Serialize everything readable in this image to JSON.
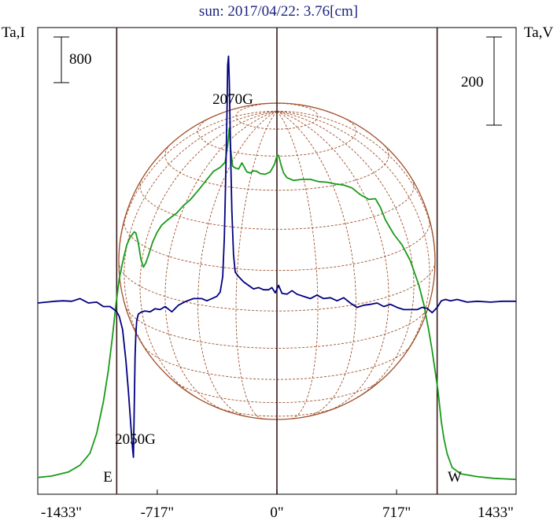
{
  "chart_data": {
    "type": "line",
    "title": "sun: 2017/04/22: 3.76[cm]",
    "ylabel_left": "Ta,I",
    "ylabel_right": "Ta,V",
    "scale_left_label": "800",
    "scale_right_label": "200",
    "x_unit": "arcsec",
    "xlim": [
      -1433,
      1433
    ],
    "x_ticks": [
      {
        "value": -1433,
        "label": "-1433\""
      },
      {
        "value": -717,
        "label": "-717\""
      },
      {
        "value": 0,
        "label": "0\""
      },
      {
        "value": 717,
        "label": "717\""
      },
      {
        "value": 1433,
        "label": "1433\""
      }
    ],
    "vertical_lines": [
      -960,
      0,
      960
    ],
    "limb_labels": [
      {
        "text": "E",
        "x": -1025
      },
      {
        "text": "W",
        "x": 1050
      }
    ],
    "annotations": [
      {
        "text": "2070G",
        "x": -287
      },
      {
        "text": "2050G",
        "x": -855
      }
    ],
    "grid": false,
    "colors": {
      "I": "#1a9a1a",
      "V": "#000080",
      "sun": "#a0522d",
      "title": "#1a237e",
      "guides": "#3b1a1a"
    },
    "series": [
      {
        "name": "I",
        "color": "#1a9a1a",
        "points": [
          [
            -1433,
            -175
          ],
          [
            -1350,
            -150
          ],
          [
            -1250,
            -80
          ],
          [
            -1180,
            40
          ],
          [
            -1120,
            250
          ],
          [
            -1080,
            600
          ],
          [
            -1040,
            1150
          ],
          [
            -1010,
            1700
          ],
          [
            -985,
            2300
          ],
          [
            -965,
            2850
          ],
          [
            -945,
            3300
          ],
          [
            -930,
            3520
          ],
          [
            -915,
            3720
          ],
          [
            -900,
            3900
          ],
          [
            -880,
            4030
          ],
          [
            -855,
            4130
          ],
          [
            -845,
            4110
          ],
          [
            -830,
            3930
          ],
          [
            -815,
            3650
          ],
          [
            -800,
            3510
          ],
          [
            -785,
            3590
          ],
          [
            -765,
            3760
          ],
          [
            -745,
            3950
          ],
          [
            -720,
            4110
          ],
          [
            -690,
            4250
          ],
          [
            -650,
            4350
          ],
          [
            -600,
            4460
          ],
          [
            -560,
            4590
          ],
          [
            -520,
            4690
          ],
          [
            -470,
            4860
          ],
          [
            -430,
            5010
          ],
          [
            -380,
            5190
          ],
          [
            -340,
            5260
          ],
          [
            -310,
            5350
          ],
          [
            -295,
            5650
          ],
          [
            -285,
            5950
          ],
          [
            -278,
            5600
          ],
          [
            -265,
            5280
          ],
          [
            -250,
            5250
          ],
          [
            -230,
            5230
          ],
          [
            -210,
            5340
          ],
          [
            -195,
            5260
          ],
          [
            -180,
            5180
          ],
          [
            -160,
            5160
          ],
          [
            -140,
            5200
          ],
          [
            -120,
            5190
          ],
          [
            -100,
            5150
          ],
          [
            -70,
            5140
          ],
          [
            -40,
            5180
          ],
          [
            -15,
            5310
          ],
          [
            0,
            5460
          ],
          [
            10,
            5470
          ],
          [
            25,
            5300
          ],
          [
            40,
            5160
          ],
          [
            60,
            5080
          ],
          [
            100,
            5030
          ],
          [
            150,
            5050
          ],
          [
            200,
            5050
          ],
          [
            250,
            5010
          ],
          [
            300,
            5000
          ],
          [
            350,
            4970
          ],
          [
            400,
            4950
          ],
          [
            450,
            4900
          ],
          [
            500,
            4780
          ],
          [
            550,
            4700
          ],
          [
            590,
            4710
          ],
          [
            620,
            4560
          ],
          [
            650,
            4340
          ],
          [
            700,
            4090
          ],
          [
            750,
            3900
          ],
          [
            800,
            3620
          ],
          [
            850,
            3200
          ],
          [
            880,
            2860
          ],
          [
            910,
            2400
          ],
          [
            930,
            2050
          ],
          [
            950,
            1650
          ],
          [
            965,
            1350
          ],
          [
            985,
            800
          ],
          [
            1000,
            520
          ],
          [
            1020,
            240
          ],
          [
            1050,
            0
          ],
          [
            1100,
            -110
          ],
          [
            1200,
            -160
          ],
          [
            1300,
            -190
          ],
          [
            1433,
            -210
          ]
        ]
      },
      {
        "name": "V",
        "color": "#000080",
        "points": [
          [
            -1433,
            0
          ],
          [
            -1380,
            2
          ],
          [
            -1330,
            4
          ],
          [
            -1280,
            5
          ],
          [
            -1230,
            4
          ],
          [
            -1180,
            10
          ],
          [
            -1130,
            0
          ],
          [
            -1080,
            2
          ],
          [
            -1040,
            -8
          ],
          [
            -1000,
            -8
          ],
          [
            -975,
            -15
          ],
          [
            -960,
            -20
          ],
          [
            -945,
            -30
          ],
          [
            -925,
            -60
          ],
          [
            -905,
            -130
          ],
          [
            -890,
            -200
          ],
          [
            -875,
            -280
          ],
          [
            -865,
            -330
          ],
          [
            -860,
            -350
          ],
          [
            -855,
            -240
          ],
          [
            -850,
            -120
          ],
          [
            -845,
            -70
          ],
          [
            -840,
            -40
          ],
          [
            -830,
            -25
          ],
          [
            -810,
            -20
          ],
          [
            -790,
            -18
          ],
          [
            -760,
            -20
          ],
          [
            -730,
            -13
          ],
          [
            -700,
            -15
          ],
          [
            -670,
            -8
          ],
          [
            -630,
            -20
          ],
          [
            -590,
            -5
          ],
          [
            -550,
            3
          ],
          [
            -500,
            10
          ],
          [
            -450,
            10
          ],
          [
            -420,
            5
          ],
          [
            -390,
            10
          ],
          [
            -360,
            15
          ],
          [
            -340,
            25
          ],
          [
            -325,
            60
          ],
          [
            -315,
            150
          ],
          [
            -308,
            270
          ],
          [
            -300,
            420
          ],
          [
            -295,
            540
          ],
          [
            -290,
            560
          ],
          [
            -285,
            500
          ],
          [
            -278,
            350
          ],
          [
            -270,
            210
          ],
          [
            -260,
            110
          ],
          [
            -250,
            70
          ],
          [
            -230,
            60
          ],
          [
            -200,
            48
          ],
          [
            -170,
            40
          ],
          [
            -140,
            32
          ],
          [
            -110,
            35
          ],
          [
            -80,
            30
          ],
          [
            -50,
            30
          ],
          [
            -30,
            35
          ],
          [
            -10,
            23
          ],
          [
            10,
            40
          ],
          [
            30,
            22
          ],
          [
            60,
            20
          ],
          [
            90,
            28
          ],
          [
            120,
            20
          ],
          [
            160,
            15
          ],
          [
            200,
            10
          ],
          [
            240,
            18
          ],
          [
            280,
            10
          ],
          [
            320,
            12
          ],
          [
            360,
            5
          ],
          [
            400,
            12
          ],
          [
            440,
            0
          ],
          [
            480,
            -10
          ],
          [
            520,
            -5
          ],
          [
            560,
            -3
          ],
          [
            600,
            0
          ],
          [
            640,
            -8
          ],
          [
            680,
            -3
          ],
          [
            720,
            -10
          ],
          [
            760,
            -15
          ],
          [
            800,
            -15
          ],
          [
            840,
            -15
          ],
          [
            870,
            -10
          ],
          [
            900,
            -12
          ],
          [
            930,
            -22
          ],
          [
            960,
            -10
          ],
          [
            985,
            5
          ],
          [
            1010,
            8
          ],
          [
            1040,
            5
          ],
          [
            1080,
            8
          ],
          [
            1140,
            2
          ],
          [
            1200,
            4
          ],
          [
            1280,
            2
          ],
          [
            1350,
            4
          ],
          [
            1433,
            4
          ]
        ]
      }
    ]
  }
}
